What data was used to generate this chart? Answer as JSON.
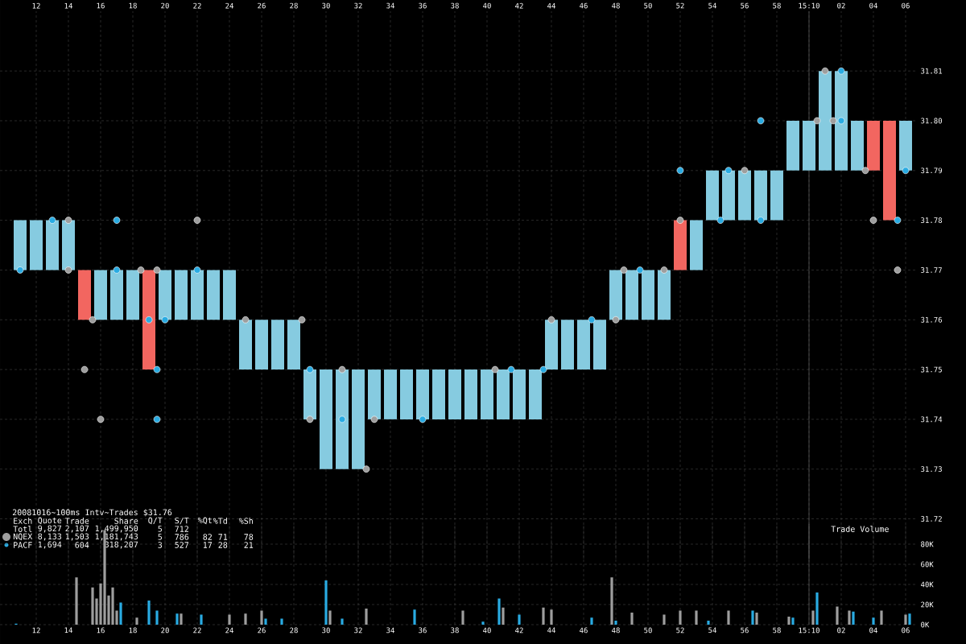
{
  "chart_data": [
    {
      "type": "bar",
      "series": [
        {
          "type": "bar",
          "x": [
            "2008-10-16T15:09:11",
            "2008-10-16T15:09:12",
            "2008-10-16T15:09:13",
            "2008-10-16T15:09:14",
            "2008-10-16T15:09:15",
            "2008-10-16T15:09:16",
            "2008-10-16T15:09:17",
            "2008-10-16T15:09:18",
            "2008-10-16T15:09:19",
            "2008-10-16T15:09:20",
            "2008-10-16T15:09:21",
            "2008-10-16T15:09:22",
            "2008-10-16T15:09:23",
            "2008-10-16T15:09:24",
            "2008-10-16T15:09:25",
            "2008-10-16T15:09:26",
            "2008-10-16T15:09:27",
            "2008-10-16T15:09:28",
            "2008-10-16T15:09:29",
            "2008-10-16T15:09:30",
            "2008-10-16T15:09:31",
            "2008-10-16T15:09:32",
            "2008-10-16T15:09:33",
            "2008-10-16T15:09:34",
            "2008-10-16T15:09:35",
            "2008-10-16T15:09:36",
            "2008-10-16T15:09:37",
            "2008-10-16T15:09:38",
            "2008-10-16T15:09:39",
            "2008-10-16T15:09:40",
            "2008-10-16T15:09:41",
            "2008-10-16T15:09:42",
            "2008-10-16T15:09:43",
            "2008-10-16T15:09:44",
            "2008-10-16T15:09:45",
            "2008-10-16T15:09:46",
            "2008-10-16T15:09:47",
            "2008-10-16T15:09:48",
            "2008-10-16T15:09:49",
            "2008-10-16T15:09:50",
            "2008-10-16T15:09:51",
            "2008-10-16T15:09:52",
            "2008-10-16T15:09:53",
            "2008-10-16T15:09:54",
            "2008-10-16T15:09:55",
            "2008-10-16T15:09:56",
            "2008-10-16T15:09:57",
            "2008-10-16T15:09:58",
            "2008-10-16T15:09:59",
            "2008-10-16T15:10:00",
            "2008-10-16T15:10:01",
            "2008-10-16T15:10:02",
            "2008-10-16T15:10:03",
            "2008-10-16T15:10:04",
            "2008-10-16T15:10:05",
            "2008-10-16T15:10:06"
          ],
          "base": [
            31.77,
            31.77,
            31.77,
            31.77,
            31.77,
            31.76,
            31.76,
            31.76,
            31.77,
            31.76,
            31.76,
            31.76,
            31.76,
            31.76,
            31.75,
            31.75,
            31.75,
            31.75,
            31.74,
            31.73,
            31.73,
            31.73,
            31.74,
            31.74,
            31.74,
            31.74,
            31.74,
            31.74,
            31.74,
            31.74,
            31.74,
            31.74,
            31.74,
            31.75,
            31.75,
            31.75,
            31.75,
            31.76,
            31.76,
            31.76,
            31.76,
            31.78,
            31.77,
            31.78,
            31.78,
            31.78,
            31.78,
            31.78,
            31.79,
            31.79,
            31.79,
            31.79,
            31.79,
            31.79,
            31.8,
            31.79
          ],
          "values": [
            0.01,
            0.01,
            0.01,
            0.01,
            -0.01,
            0.01,
            0.01,
            0.01,
            -0.02,
            0.01,
            0.01,
            0.01,
            0.01,
            0.01,
            0.01,
            0.01,
            0.01,
            0.01,
            0.01,
            0.02,
            0.02,
            0.02,
            0.01,
            0.01,
            0.01,
            0.01,
            0.01,
            0.01,
            0.01,
            0.01,
            0.01,
            0.01,
            0.01,
            0.01,
            0.01,
            0.01,
            0.01,
            0.01,
            0.01,
            0.01,
            0.01,
            -0.01,
            0.01,
            0.01,
            0.01,
            0.01,
            0.01,
            0.01,
            0.01,
            0.01,
            0.02,
            0.02,
            0.01,
            0.01,
            -0.02,
            0.01
          ],
          "colors": [
            "#86cbe0",
            "#86cbe0",
            "#86cbe0",
            "#86cbe0",
            "#f26660",
            "#86cbe0",
            "#86cbe0",
            "#86cbe0",
            "#f26660",
            "#86cbe0",
            "#86cbe0",
            "#86cbe0",
            "#86cbe0",
            "#86cbe0",
            "#86cbe0",
            "#86cbe0",
            "#86cbe0",
            "#86cbe0",
            "#86cbe0",
            "#86cbe0",
            "#86cbe0",
            "#86cbe0",
            "#86cbe0",
            "#86cbe0",
            "#86cbe0",
            "#86cbe0",
            "#86cbe0",
            "#86cbe0",
            "#86cbe0",
            "#86cbe0",
            "#86cbe0",
            "#86cbe0",
            "#86cbe0",
            "#86cbe0",
            "#86cbe0",
            "#86cbe0",
            "#86cbe0",
            "#86cbe0",
            "#86cbe0",
            "#86cbe0",
            "#86cbe0",
            "#f26660",
            "#86cbe0",
            "#86cbe0",
            "#86cbe0",
            "#86cbe0",
            "#86cbe0",
            "#86cbe0",
            "#86cbe0",
            "#86cbe0",
            "#86cbe0",
            "#86cbe0",
            "#86cbe0",
            "#f26660",
            "#f26660",
            "#86cbe0"
          ]
        },
        {
          "type": "scatter",
          "name": "NQEX",
          "color": "#9e9e9e",
          "x": [
            "2008-10-16T15:09:14",
            "2008-10-16T15:09:14",
            "2008-10-16T15:09:15.5",
            "2008-10-16T15:09:15",
            "2008-10-16T15:09:16",
            "2008-10-16T15:09:22",
            "2008-10-16T15:09:18.5",
            "2008-10-16T15:09:19.5",
            "2008-10-16T15:09:28.5",
            "2008-10-16T15:09:31",
            "2008-10-16T15:09:29",
            "2008-10-16T15:09:32.5",
            "2008-10-16T15:09:33",
            "2008-10-16T15:09:25",
            "2008-10-16T15:09:40.5",
            "2008-10-16T15:09:48",
            "2008-10-16T15:09:44",
            "2008-10-16T15:09:48.5",
            "2008-10-16T15:09:51",
            "2008-10-16T15:09:52",
            "2008-10-16T15:09:56",
            "2008-10-16T15:10:00.5",
            "2008-10-16T15:10:01.5",
            "2008-10-16T15:10:05.5",
            "2008-10-16T15:10:04",
            "2008-10-16T15:10:03.5",
            "2008-10-16T15:10:01"
          ],
          "values": [
            31.78,
            31.77,
            31.76,
            31.75,
            31.74,
            31.78,
            31.77,
            31.77,
            31.76,
            31.75,
            31.74,
            31.73,
            31.74,
            31.76,
            31.75,
            31.76,
            31.76,
            31.77,
            31.77,
            31.78,
            31.79,
            31.8,
            31.8,
            31.77,
            31.78,
            31.79,
            31.81
          ]
        },
        {
          "type": "scatter",
          "name": "PACF",
          "color": "#29abe2",
          "x": [
            "2008-10-16T15:09:11",
            "2008-10-16T15:09:13",
            "2008-10-16T15:09:17",
            "2008-10-16T15:09:17",
            "2008-10-16T15:09:19",
            "2008-10-16T15:09:20",
            "2008-10-16T15:09:19.5",
            "2008-10-16T15:09:19.5",
            "2008-10-16T15:09:22",
            "2008-10-16T15:09:29",
            "2008-10-16T15:09:31",
            "2008-10-16T15:09:36",
            "2008-10-16T15:09:41.5",
            "2008-10-16T15:09:43.5",
            "2008-10-16T15:09:46.5",
            "2008-10-16T15:09:49.5",
            "2008-10-16T15:09:54.5",
            "2008-10-16T15:09:57",
            "2008-10-16T15:09:57",
            "2008-10-16T15:09:55",
            "2008-10-16T15:10:02",
            "2008-10-16T15:10:02",
            "2008-10-16T15:10:06",
            "2008-10-16T15:10:05.5",
            "2008-10-16T15:09:52"
          ],
          "values": [
            31.77,
            31.78,
            31.78,
            31.77,
            31.76,
            31.76,
            31.75,
            31.74,
            31.77,
            31.75,
            31.74,
            31.74,
            31.75,
            31.75,
            31.76,
            31.77,
            31.78,
            31.78,
            31.8,
            31.79,
            31.81,
            31.8,
            31.79,
            31.78,
            31.79
          ]
        }
      ],
      "xlim": [
        "2008-10-16T15:09:09.75",
        "2008-10-16T15:10:06.75"
      ],
      "ylim": [
        31.712,
        31.822
      ],
      "xticks": [
        {
          "value": "2008-10-16T15:09:12",
          "label": "12"
        },
        {
          "value": "2008-10-16T15:09:14",
          "label": "14"
        },
        {
          "value": "2008-10-16T15:09:16",
          "label": "16"
        },
        {
          "value": "2008-10-16T15:09:18",
          "label": "18"
        },
        {
          "value": "2008-10-16T15:09:20",
          "label": "20"
        },
        {
          "value": "2008-10-16T15:09:22",
          "label": "22"
        },
        {
          "value": "2008-10-16T15:09:24",
          "label": "24"
        },
        {
          "value": "2008-10-16T15:09:26",
          "label": "26"
        },
        {
          "value": "2008-10-16T15:09:28",
          "label": "28"
        },
        {
          "value": "2008-10-16T15:09:30",
          "label": "30"
        },
        {
          "value": "2008-10-16T15:09:32",
          "label": "32"
        },
        {
          "value": "2008-10-16T15:09:34",
          "label": "34"
        },
        {
          "value": "2008-10-16T15:09:36",
          "label": "36"
        },
        {
          "value": "2008-10-16T15:09:38",
          "label": "38"
        },
        {
          "value": "2008-10-16T15:09:40",
          "label": "40"
        },
        {
          "value": "2008-10-16T15:09:42",
          "label": "42"
        },
        {
          "value": "2008-10-16T15:09:44",
          "label": "44"
        },
        {
          "value": "2008-10-16T15:09:46",
          "label": "46"
        },
        {
          "value": "2008-10-16T15:09:48",
          "label": "48"
        },
        {
          "value": "2008-10-16T15:09:50",
          "label": "50"
        },
        {
          "value": "2008-10-16T15:09:52",
          "label": "52"
        },
        {
          "value": "2008-10-16T15:09:54",
          "label": "54"
        },
        {
          "value": "2008-10-16T15:09:56",
          "label": "56"
        },
        {
          "value": "2008-10-16T15:09:58",
          "label": "58"
        },
        {
          "value": "2008-10-16T15:10:00",
          "label": "15:10"
        },
        {
          "value": "2008-10-16T15:10:02",
          "label": "02"
        },
        {
          "value": "2008-10-16T15:10:04",
          "label": "04"
        },
        {
          "value": "2008-10-16T15:10:06",
          "label": "06"
        }
      ],
      "yticks": [
        31.72,
        31.73,
        31.74,
        31.75,
        31.76,
        31.77,
        31.78,
        31.79,
        {
          "value": 31.8,
          "label": "31.80"
        },
        31.81
      ],
      "grid": true,
      "marker": "circle",
      "legend": "bottom left",
      "ref_lines": [
        {
          "axis": "x",
          "value": "2008-10-16T15:10:00",
          "color": "#555555"
        }
      ],
      "annotations": [
        "20081016~100ms Intv~Trades $31.76",
        "Exch",
        "Quote",
        "Trade",
        "Share",
        "Q/T",
        "S/T",
        "%Qt",
        "%Td",
        "%Sh",
        "Totl",
        "9,827",
        "2,107",
        "1,499,950",
        "5",
        "712",
        "8,133",
        "1,503",
        "1,181,743",
        "5",
        "786",
        "82",
        "71",
        "78",
        "1,694",
        "604",
        "318,207",
        "3",
        "527",
        "17",
        "28",
        "21"
      ]
    },
    {
      "type": "bar",
      "series": [
        {
          "color": "#9e9e9e",
          "x": [
            "2008-10-16T15:09:14.5",
            "2008-10-16T15:09:15.5",
            "2008-10-16T15:09:15.75",
            "2008-10-16T15:09:16",
            "2008-10-16T15:09:16.25",
            "2008-10-16T15:09:16.5",
            "2008-10-16T15:09:16.75",
            "2008-10-16T15:09:17",
            "2008-10-16T15:09:18.25",
            "2008-10-16T15:09:21",
            "2008-10-16T15:09:24",
            "2008-10-16T15:09:25",
            "2008-10-16T15:09:26",
            "2008-10-16T15:09:30.25",
            "2008-10-16T15:09:32.5",
            "2008-10-16T15:09:38.5",
            "2008-10-16T15:09:41",
            "2008-10-16T15:09:43.5",
            "2008-10-16T15:09:44",
            "2008-10-16T15:09:47.75",
            "2008-10-16T15:09:49",
            "2008-10-16T15:09:51",
            "2008-10-16T15:09:52",
            "2008-10-16T15:09:53",
            "2008-10-16T15:09:55",
            "2008-10-16T15:09:56.75",
            "2008-10-16T15:09:58.75",
            "2008-10-16T15:10:00.25",
            "2008-10-16T15:10:01.75",
            "2008-10-16T15:10:02.5",
            "2008-10-16T15:10:04.5",
            "2008-10-16T15:10:06"
          ],
          "values": [
            47000,
            37000,
            26000,
            41000,
            94000,
            29000,
            37000,
            14000,
            7000,
            11000,
            10000,
            11000,
            14000,
            14000,
            16000,
            14000,
            17000,
            17000,
            15000,
            47000,
            12000,
            10000,
            14000,
            14000,
            14000,
            12000,
            8000,
            14000,
            18000,
            14000,
            14000,
            10000
          ]
        },
        {
          "color": "#29abe2",
          "x": [
            "2008-10-16T15:09:10.75",
            "2008-10-16T15:09:17.25",
            "2008-10-16T15:09:19",
            "2008-10-16T15:09:19.5",
            "2008-10-16T15:09:20.75",
            "2008-10-16T15:09:22.25",
            "2008-10-16T15:09:26.25",
            "2008-10-16T15:09:27.25",
            "2008-10-16T15:09:30",
            "2008-10-16T15:09:31",
            "2008-10-16T15:09:35.5",
            "2008-10-16T15:09:39.75",
            "2008-10-16T15:09:40.75",
            "2008-10-16T15:09:42",
            "2008-10-16T15:09:46.5",
            "2008-10-16T15:09:48",
            "2008-10-16T15:09:53.75",
            "2008-10-16T15:09:56.5",
            "2008-10-16T15:09:59",
            "2008-10-16T15:10:00.5",
            "2008-10-16T15:10:02.75",
            "2008-10-16T15:10:04",
            "2008-10-16T15:10:06.25"
          ],
          "values": [
            1000,
            22000,
            24000,
            14000,
            11000,
            10000,
            6000,
            6000,
            44000,
            6000,
            15000,
            3000,
            26000,
            10000,
            7000,
            4000,
            4000,
            14000,
            7000,
            32000,
            13000,
            7000,
            11000
          ]
        }
      ],
      "xlim": [
        "2008-10-16T15:09:09.75",
        "2008-10-16T15:10:06.75"
      ],
      "ylim": [
        0,
        100000
      ],
      "xticks": [
        {
          "value": "2008-10-16T15:09:12",
          "label": "12"
        },
        {
          "value": "2008-10-16T15:09:14",
          "label": "14"
        },
        {
          "value": "2008-10-16T15:09:16",
          "label": "16"
        },
        {
          "value": "2008-10-16T15:09:18",
          "label": "18"
        },
        {
          "value": "2008-10-16T15:09:20",
          "label": "20"
        },
        {
          "value": "2008-10-16T15:09:22",
          "label": "22"
        },
        {
          "value": "2008-10-16T15:09:24",
          "label": "24"
        },
        {
          "value": "2008-10-16T15:09:26",
          "label": "26"
        },
        {
          "value": "2008-10-16T15:09:28",
          "label": "28"
        },
        {
          "value": "2008-10-16T15:09:30",
          "label": "30"
        },
        {
          "value": "2008-10-16T15:09:32",
          "label": "32"
        },
        {
          "value": "2008-10-16T15:09:34",
          "label": "34"
        },
        {
          "value": "2008-10-16T15:09:36",
          "label": "36"
        },
        {
          "value": "2008-10-16T15:09:38",
          "label": "38"
        },
        {
          "value": "2008-10-16T15:09:40",
          "label": "40"
        },
        {
          "value": "2008-10-16T15:09:42",
          "label": "42"
        },
        {
          "value": "2008-10-16T15:09:44",
          "label": "44"
        },
        {
          "value": "2008-10-16T15:09:46",
          "label": "46"
        },
        {
          "value": "2008-10-16T15:09:48",
          "label": "48"
        },
        {
          "value": "2008-10-16T15:09:50",
          "label": "50"
        },
        {
          "value": "2008-10-16T15:09:52",
          "label": "52"
        },
        {
          "value": "2008-10-16T15:09:54",
          "label": "54"
        },
        {
          "value": "2008-10-16T15:09:56",
          "label": "56"
        },
        {
          "value": "2008-10-16T15:09:58",
          "label": "58"
        },
        {
          "value": "2008-10-16T15:10:00",
          "label": "15:10"
        },
        {
          "value": "2008-10-16T15:10:02",
          "label": "02"
        },
        {
          "value": "2008-10-16T15:10:04",
          "label": "04"
        },
        {
          "value": "2008-10-16T15:10:06",
          "label": "06"
        }
      ],
      "yticks": [
        {
          "value": 0,
          "label": "0K"
        },
        {
          "value": 20000,
          "label": "20K"
        },
        {
          "value": 40000,
          "label": "40K"
        },
        {
          "value": 60000,
          "label": "60K"
        },
        {
          "value": 80000,
          "label": "80K"
        }
      ],
      "grid": true,
      "ref_lines": [
        {
          "axis": "x",
          "value": "2008-10-16T15:10:00",
          "color": "#555555"
        }
      ],
      "annotations": [
        "Trade Volume"
      ]
    }
  ]
}
